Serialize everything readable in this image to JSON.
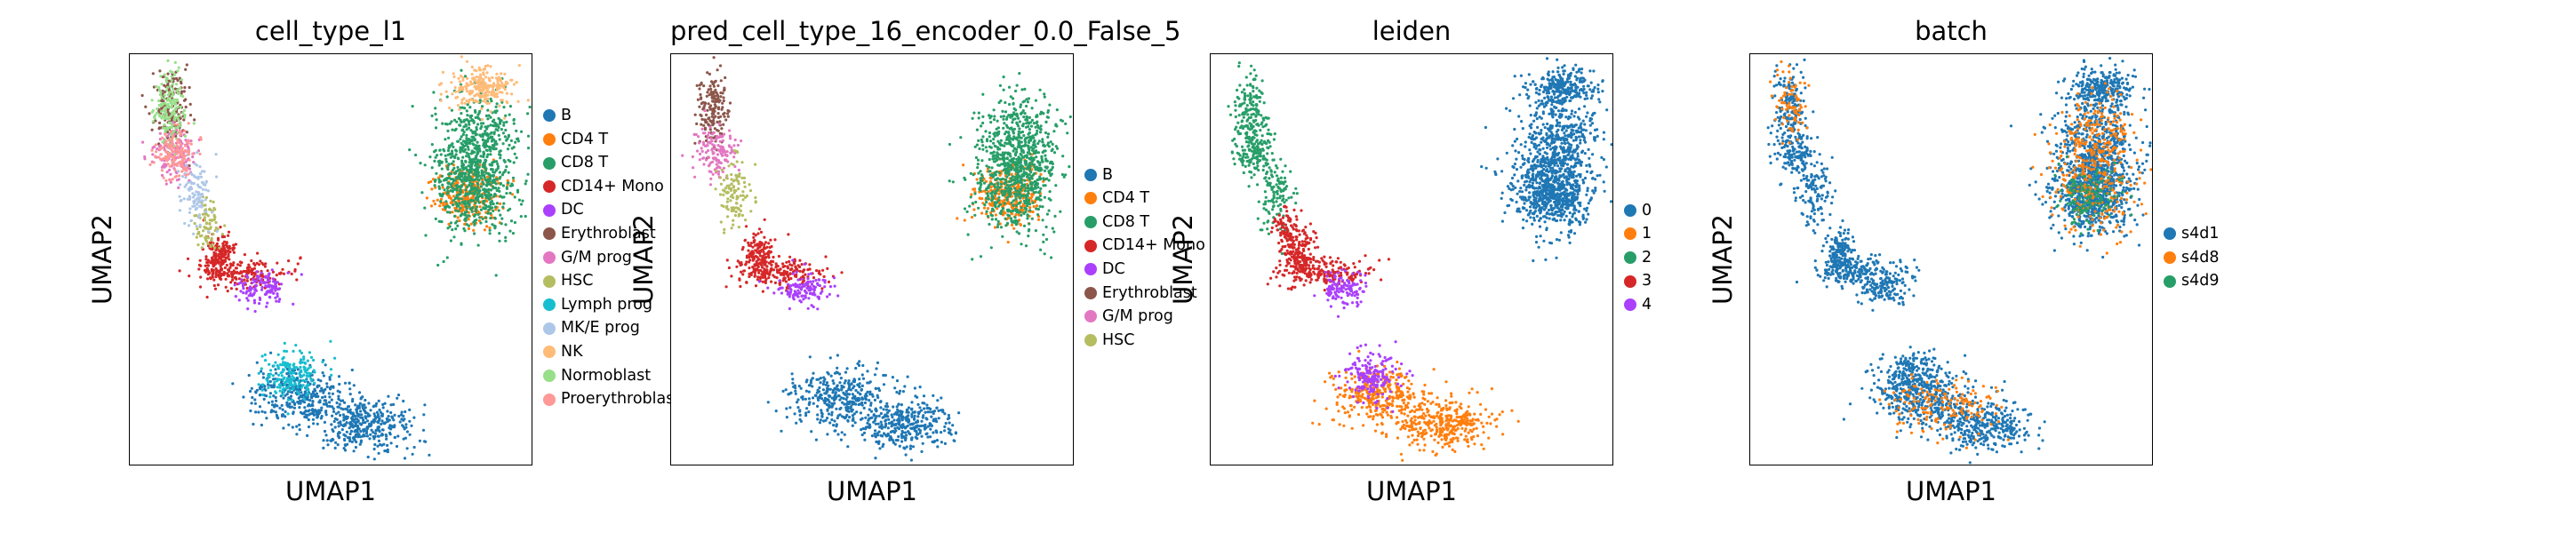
{
  "chart_data": [
    {
      "type": "scatter",
      "title": "cell_type_l1",
      "xlabel": "UMAP1",
      "ylabel": "UMAP2",
      "grid": false,
      "legend_position": "right",
      "series": [
        {
          "name": "B",
          "color": "#1f77b4"
        },
        {
          "name": "CD4 T",
          "color": "#ff7f0e"
        },
        {
          "name": "CD8 T",
          "color": "#279e68"
        },
        {
          "name": "CD14+ Mono",
          "color": "#d62728"
        },
        {
          "name": "DC",
          "color": "#aa40fc"
        },
        {
          "name": "Erythroblast",
          "color": "#8c564b"
        },
        {
          "name": "G/M prog",
          "color": "#e377c2"
        },
        {
          "name": "HSC",
          "color": "#b5bd61"
        },
        {
          "name": "Lymph prog",
          "color": "#17becf"
        },
        {
          "name": "MK/E prog",
          "color": "#aec7e8"
        },
        {
          "name": "NK",
          "color": "#ffbb78"
        },
        {
          "name": "Normoblast",
          "color": "#98df8a"
        },
        {
          "name": "Proerythroblast",
          "color": "#ff9896"
        }
      ]
    },
    {
      "type": "scatter",
      "title": "pred_cell_type_16_encoder_0.0_False_5",
      "xlabel": "UMAP1",
      "ylabel": "UMAP2",
      "grid": false,
      "legend_position": "right",
      "series": [
        {
          "name": "B",
          "color": "#1f77b4"
        },
        {
          "name": "CD4 T",
          "color": "#ff7f0e"
        },
        {
          "name": "CD8 T",
          "color": "#279e68"
        },
        {
          "name": "CD14+ Mono",
          "color": "#d62728"
        },
        {
          "name": "DC",
          "color": "#aa40fc"
        },
        {
          "name": "Erythroblast",
          "color": "#8c564b"
        },
        {
          "name": "G/M prog",
          "color": "#e377c2"
        },
        {
          "name": "HSC",
          "color": "#b5bd61"
        }
      ]
    },
    {
      "type": "scatter",
      "title": "leiden",
      "xlabel": "UMAP1",
      "ylabel": "UMAP2",
      "grid": false,
      "legend_position": "right",
      "series": [
        {
          "name": "0",
          "color": "#1f77b4"
        },
        {
          "name": "1",
          "color": "#ff7f0e"
        },
        {
          "name": "2",
          "color": "#279e68"
        },
        {
          "name": "3",
          "color": "#d62728"
        },
        {
          "name": "4",
          "color": "#aa40fc"
        }
      ]
    },
    {
      "type": "scatter",
      "title": "batch",
      "xlabel": "UMAP1",
      "ylabel": "UMAP2",
      "grid": false,
      "legend_position": "right",
      "series": [
        {
          "name": "s4d1",
          "color": "#1f77b4"
        },
        {
          "name": "s4d8",
          "color": "#ff7f0e"
        },
        {
          "name": "s4d9",
          "color": "#279e68"
        }
      ]
    }
  ]
}
